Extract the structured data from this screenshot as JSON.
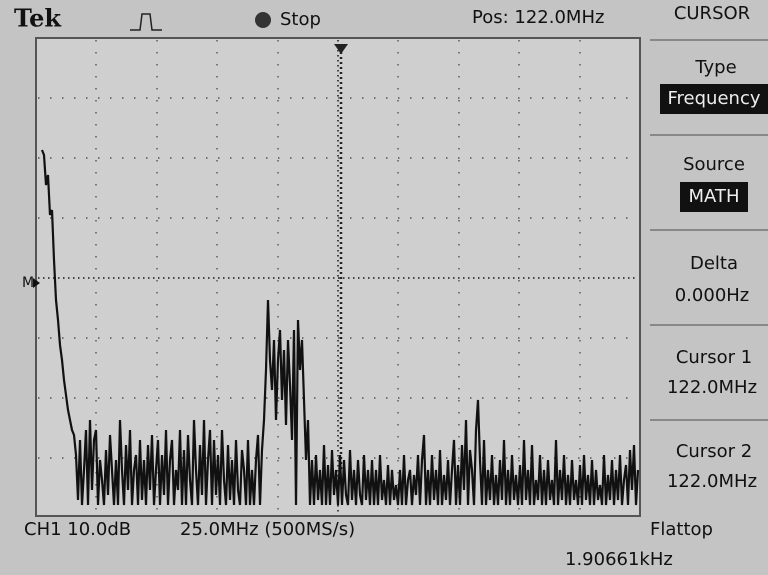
{
  "header": {
    "brand": "Tek",
    "status": "Stop",
    "position": "Pos: 122.0MHz"
  },
  "menu": {
    "title": "CURSOR",
    "items": [
      {
        "label": "Type",
        "value": "Frequency"
      },
      {
        "label": "Source",
        "value": "MATH"
      },
      {
        "label": "Delta",
        "value": "0.000Hz"
      },
      {
        "label": "Cursor 1",
        "value": "122.0MHz"
      },
      {
        "label": "Cursor 2",
        "value": "122.0MHz"
      }
    ]
  },
  "footer": {
    "channel": "CH1 10.0dB",
    "timebase": "25.0MHz (500MS/s)",
    "window": "Flattop",
    "frequency": "1.90661kHz"
  },
  "markers": {
    "math": "M"
  }
}
